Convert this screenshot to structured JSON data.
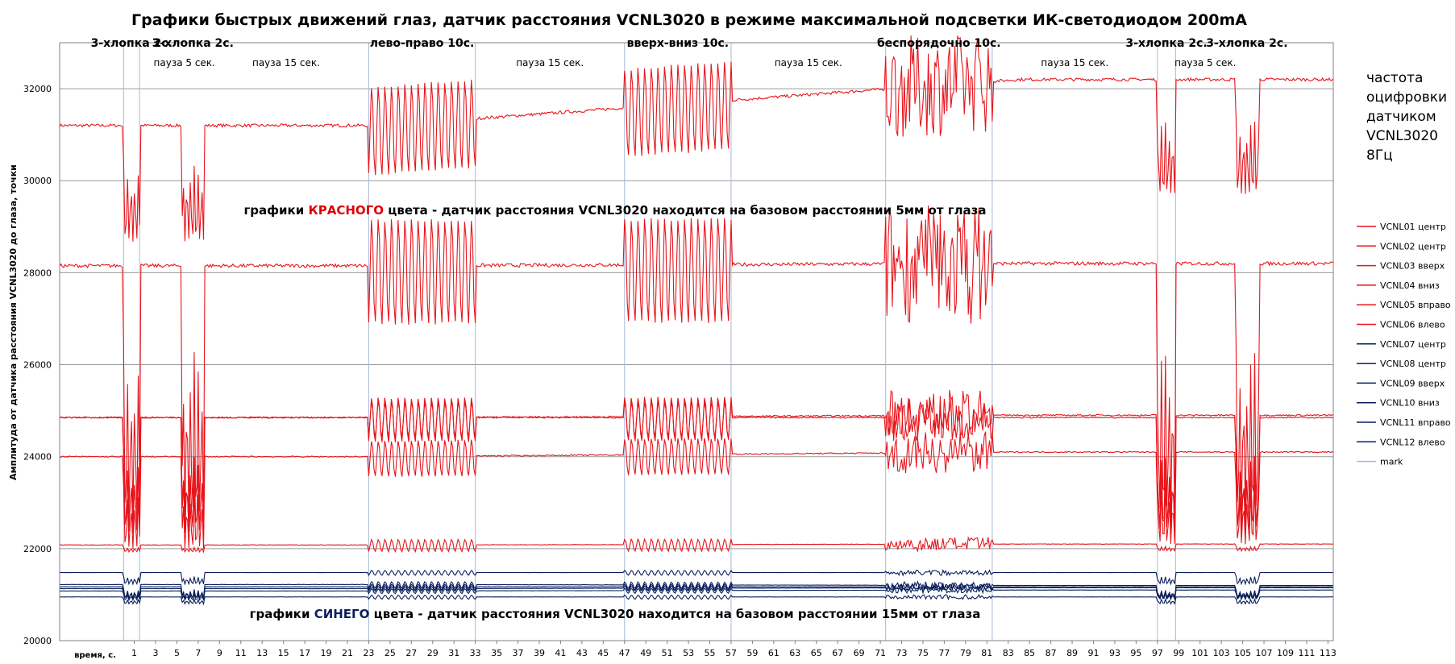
{
  "chart_data": {
    "type": "line",
    "title": "Графики быстрых движений глаз, датчик расстояния VCNL3020 в режиме максимальной подсветки ИК-светодиодом 200mA",
    "xlabel": "время, с.",
    "ylabel": "Амплитуда от датчика расстояния VCNL3020 до глаза, точки",
    "xlim": [
      -6,
      113.5
    ],
    "ylim": [
      20000,
      33000
    ],
    "yticks": [
      "20000",
      "22000",
      "24000",
      "26000",
      "28000",
      "30000",
      "32000"
    ],
    "xticks": [
      "1",
      "3",
      "5",
      "7",
      "9",
      "11",
      "13",
      "15",
      "17",
      "19",
      "21",
      "23",
      "25",
      "27",
      "29",
      "31",
      "33",
      "35",
      "37",
      "39",
      "41",
      "43",
      "45",
      "47",
      "49",
      "51",
      "53",
      "55",
      "57",
      "59",
      "61",
      "63",
      "65",
      "67",
      "69",
      "71",
      "73",
      "75",
      "77",
      "79",
      "81",
      "83",
      "85",
      "87",
      "89",
      "91",
      "93",
      "95",
      "97",
      "99",
      "101",
      "103",
      "105",
      "107",
      "109",
      "111",
      "113"
    ],
    "grid": true,
    "legend_position": "right",
    "phases": [
      {
        "label": "3-хлопка 2с.",
        "start": 0,
        "end": 1.5
      },
      {
        "label": "3-хлопка 2с.",
        "start": 5.5,
        "end": 7.5
      },
      {
        "label": "лево-право 10с.",
        "start": 23,
        "end": 33
      },
      {
        "label": "вверх-вниз 10с.",
        "start": 47,
        "end": 57
      },
      {
        "label": "беспорядочно 10с.",
        "start": 71.5,
        "end": 81.5
      },
      {
        "label": "3-хлопка 2с.",
        "start": 97,
        "end": 98.7
      },
      {
        "label": "3-хлопка   2с.",
        "start": 104.3,
        "end": 106.5
      }
    ],
    "pauses": [
      {
        "label": "пауза 5 сек."
      },
      {
        "label": "пауза 15 сек."
      },
      {
        "label": "пауза 15 сек."
      },
      {
        "label": "пауза 15 сек."
      },
      {
        "label": "пауза 15 сек."
      },
      {
        "label": "пауза 5 сек."
      }
    ],
    "marks": [
      0,
      1.5,
      23,
      33,
      47,
      57,
      71.5,
      81.5,
      97,
      98.7
    ],
    "series": [
      {
        "name": "VCNL01 центр",
        "color": "#e8141b",
        "base": 31200,
        "end": 32200,
        "amp": 1100,
        "drop": 2500
      },
      {
        "name": "VCNL02 центр",
        "color": "#e8141b",
        "base": 28150,
        "end": 28200,
        "amp": 1300,
        "drop": 5500
      },
      {
        "name": "VCNL03 вверх",
        "color": "#e8141b",
        "base": 24850,
        "end": 24900,
        "amp": 550,
        "drop": 2500
      },
      {
        "name": "VCNL04 вниз",
        "color": "#e8141b",
        "base": 24850,
        "end": 24850,
        "amp": 450,
        "drop": 2500
      },
      {
        "name": "VCNL05 вправо",
        "color": "#e8141b",
        "base": 24000,
        "end": 24100,
        "amp": 450,
        "drop": 2000
      },
      {
        "name": "VCNL06 влево",
        "color": "#e8141b",
        "base": 22080,
        "end": 22100,
        "amp": 150,
        "drop": 150
      },
      {
        "name": "VCNL07 центр",
        "color": "#0a1f5c",
        "base": 21480,
        "end": 21480,
        "amp": 60,
        "drop": 250
      },
      {
        "name": "VCNL08 центр",
        "color": "#0a1f5c",
        "base": 21220,
        "end": 21200,
        "amp": 80,
        "drop": 300
      },
      {
        "name": "VCNL09 вверх",
        "color": "#0a1f5c",
        "base": 21170,
        "end": 21170,
        "amp": 70,
        "drop": 250
      },
      {
        "name": "VCNL10 вниз",
        "color": "#0a1f5c",
        "base": 21130,
        "end": 21150,
        "amp": 60,
        "drop": 200
      },
      {
        "name": "VCNL11 вправо",
        "color": "#0a1f5c",
        "base": 21080,
        "end": 21100,
        "amp": 60,
        "drop": 200
      },
      {
        "name": "VCNL12 влево",
        "color": "#0a1f5c",
        "base": 20950,
        "end": 20950,
        "amp": 50,
        "drop": 150
      }
    ],
    "mark_legend": {
      "name": "mark",
      "color": "#a9b8da"
    },
    "annotations": {
      "red_prefix": "графики ",
      "red_word": "КРАСНОГО",
      "red_suffix": " цвета - датчик расстояния VCNL3020 находится на базовом расстоянии 5мм от глаза",
      "blue_prefix": "графики ",
      "blue_word": "СИНЕГО",
      "blue_suffix": " цвета - датчик расстояния VCNL3020 находится на базовом расстоянии 15мм от глаза",
      "freq_lines": [
        "частота",
        "оцифровки",
        "датчиком",
        "VCNL3020",
        "8Гц"
      ]
    }
  }
}
